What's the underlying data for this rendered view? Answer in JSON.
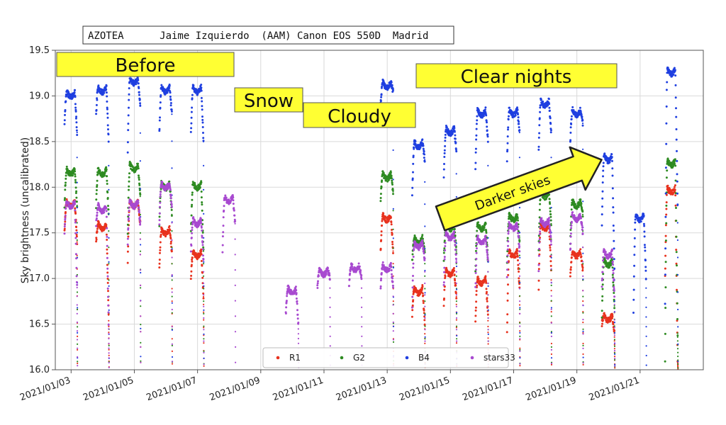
{
  "chart_data": {
    "type": "scatter",
    "title": "AZOTEA      Jaime Izquierdo  (AAM) Canon EOS 550D  Madrid",
    "ylabel": "Sky brightness (uncalibrated)",
    "xlabel": "",
    "x_axis": "date",
    "xlim": [
      "2021-01-02T12:00",
      "2021-01-23T00:00"
    ],
    "ylim": [
      16.0,
      19.5
    ],
    "y_ticks": [
      16.0,
      16.5,
      17.0,
      17.5,
      18.0,
      18.5,
      19.0,
      19.5
    ],
    "x_ticks": [
      "2021/01/03",
      "2021/01/05",
      "2021/01/07",
      "2021/01/09",
      "2021/01/11",
      "2021/01/13",
      "2021/01/15",
      "2021/01/17",
      "2021/01/19",
      "2021/01/21"
    ],
    "grid": true,
    "legend_position": "bottom-right",
    "series": [
      {
        "name": "R1",
        "color": "#e8321e",
        "nights": [
          {
            "date": "2021-01-03",
            "start": 17.5,
            "peak": 17.85,
            "end": 17.4
          },
          {
            "date": "2021-01-04",
            "start": 17.4,
            "peak": 17.6,
            "end": 16.6
          },
          {
            "date": "2021-01-05",
            "start": 17.2,
            "peak": 17.85,
            "end": 17.6
          },
          {
            "date": "2021-01-06",
            "start": 17.1,
            "peak": 17.55,
            "end": 17.3
          },
          {
            "date": "2021-01-07",
            "start": 17.0,
            "peak": 17.3,
            "end": 16.8
          },
          {
            "date": "2021-01-13",
            "start": 17.3,
            "peak": 17.7,
            "end": 17.3
          },
          {
            "date": "2021-01-14",
            "start": 16.6,
            "peak": 16.9,
            "end": 16.5
          },
          {
            "date": "2021-01-15",
            "start": 16.7,
            "peak": 17.1,
            "end": 16.8
          },
          {
            "date": "2021-01-16",
            "start": 16.5,
            "peak": 17.0,
            "end": 16.6
          },
          {
            "date": "2021-01-17",
            "start": 16.4,
            "peak": 17.3,
            "end": 16.9
          },
          {
            "date": "2021-01-18",
            "start": 16.9,
            "peak": 17.6,
            "end": 17.1
          },
          {
            "date": "2021-01-19",
            "start": 17.0,
            "peak": 17.3,
            "end": 17.1
          },
          {
            "date": "2021-01-20",
            "start": 16.5,
            "peak": 16.6,
            "end": 16.4
          },
          {
            "date": "2021-01-22",
            "start": 17.0,
            "peak": 18.0,
            "end": 16.1
          }
        ]
      },
      {
        "name": "G2",
        "color": "#2e8b22",
        "nights": [
          {
            "date": "2021-01-03",
            "start": 17.8,
            "peak": 18.2,
            "end": 17.8
          },
          {
            "date": "2021-01-04",
            "start": 17.8,
            "peak": 18.2,
            "end": 17.7
          },
          {
            "date": "2021-01-05",
            "start": 17.5,
            "peak": 18.25,
            "end": 17.9
          },
          {
            "date": "2021-01-06",
            "start": 17.6,
            "peak": 18.05,
            "end": 17.7
          },
          {
            "date": "2021-01-07",
            "start": 17.5,
            "peak": 18.05,
            "end": 17.3
          },
          {
            "date": "2021-01-13",
            "start": 17.85,
            "peak": 18.15,
            "end": 17.95
          },
          {
            "date": "2021-01-14",
            "start": 17.2,
            "peak": 17.45,
            "end": 17.3
          },
          {
            "date": "2021-01-15",
            "start": 17.2,
            "peak": 17.6,
            "end": 17.3
          },
          {
            "date": "2021-01-16",
            "start": 17.1,
            "peak": 17.6,
            "end": 17.2
          },
          {
            "date": "2021-01-17",
            "start": 17.2,
            "peak": 17.7,
            "end": 17.4
          },
          {
            "date": "2021-01-18",
            "start": 17.3,
            "peak": 17.95,
            "end": 17.6
          },
          {
            "date": "2021-01-19",
            "start": 17.4,
            "peak": 17.85,
            "end": 17.7
          },
          {
            "date": "2021-01-20",
            "start": 16.6,
            "peak": 17.2,
            "end": 16.7
          },
          {
            "date": "2021-01-22",
            "start": 16.1,
            "peak": 18.3,
            "end": 16.4
          }
        ]
      },
      {
        "name": "B4",
        "color": "#1f3fe0",
        "nights": [
          {
            "date": "2021-01-03",
            "start": 18.7,
            "peak": 19.05,
            "end": 18.6
          },
          {
            "date": "2021-01-04",
            "start": 18.8,
            "peak": 19.1,
            "end": 18.5
          },
          {
            "date": "2021-01-05",
            "start": 18.4,
            "peak": 19.2,
            "end": 18.9
          },
          {
            "date": "2021-01-06",
            "start": 18.6,
            "peak": 19.1,
            "end": 18.8
          },
          {
            "date": "2021-01-07",
            "start": 18.6,
            "peak": 19.1,
            "end": 18.5
          },
          {
            "date": "2021-01-13",
            "start": 18.9,
            "peak": 19.15,
            "end": 19.05
          },
          {
            "date": "2021-01-14",
            "start": 17.9,
            "peak": 18.5,
            "end": 18.3
          },
          {
            "date": "2021-01-15",
            "start": 18.1,
            "peak": 18.65,
            "end": 18.4
          },
          {
            "date": "2021-01-16",
            "start": 18.2,
            "peak": 18.85,
            "end": 18.5
          },
          {
            "date": "2021-01-17",
            "start": 18.3,
            "peak": 18.85,
            "end": 18.6
          },
          {
            "date": "2021-01-18",
            "start": 18.4,
            "peak": 18.95,
            "end": 18.6
          },
          {
            "date": "2021-01-19",
            "start": 18.5,
            "peak": 18.85,
            "end": 18.7
          },
          {
            "date": "2021-01-20",
            "start": 17.6,
            "peak": 18.35,
            "end": 17.1
          },
          {
            "date": "2021-01-21",
            "start": 16.6,
            "peak": 17.7,
            "end": 17.0
          },
          {
            "date": "2021-01-22",
            "start": 16.7,
            "peak": 19.3,
            "end": 17.8
          }
        ]
      },
      {
        "name": "stars33",
        "color": "#a84ad0",
        "nights": [
          {
            "date": "2021-01-03",
            "start": 17.5,
            "peak": 17.85,
            "end": 16.9
          },
          {
            "date": "2021-01-04",
            "start": 17.6,
            "peak": 17.8,
            "end": 16.5
          },
          {
            "date": "2021-01-05",
            "start": 17.4,
            "peak": 17.85,
            "end": 17.6
          },
          {
            "date": "2021-01-06",
            "start": 17.6,
            "peak": 18.05,
            "end": 17.8
          },
          {
            "date": "2021-01-07",
            "start": 17.3,
            "peak": 17.65,
            "end": 17.2
          },
          {
            "date": "2021-01-08",
            "start": 17.3,
            "peak": 17.9,
            "end": 17.6
          },
          {
            "date": "2021-01-10",
            "start": 16.6,
            "peak": 16.9,
            "end": 16.5
          },
          {
            "date": "2021-01-11",
            "start": 16.9,
            "peak": 17.1,
            "end": 17.0
          },
          {
            "date": "2021-01-12",
            "start": 16.9,
            "peak": 17.15,
            "end": 17.0
          },
          {
            "date": "2021-01-13",
            "start": 16.9,
            "peak": 17.15,
            "end": 16.9
          },
          {
            "date": "2021-01-14",
            "start": 16.7,
            "peak": 17.4,
            "end": 17.2
          },
          {
            "date": "2021-01-15",
            "start": 16.9,
            "peak": 17.5,
            "end": 17.2
          },
          {
            "date": "2021-01-16",
            "start": 16.9,
            "peak": 17.45,
            "end": 17.2
          },
          {
            "date": "2021-01-17",
            "start": 17.0,
            "peak": 17.6,
            "end": 17.3
          },
          {
            "date": "2021-01-18",
            "start": 17.1,
            "peak": 17.65,
            "end": 17.4
          },
          {
            "date": "2021-01-19",
            "start": 17.3,
            "peak": 17.7,
            "end": 17.5
          },
          {
            "date": "2021-01-20",
            "start": 16.9,
            "peak": 17.3,
            "end": 16.8
          }
        ]
      }
    ],
    "annotations": [
      {
        "text": "Before",
        "anchor_date": "2021-01-03",
        "y": 19.3
      },
      {
        "text": "Snow",
        "anchor_date": "2021-01-08",
        "y": 18.95
      },
      {
        "text": "Cloudy",
        "anchor_date": "2021-01-11",
        "y": 18.8
      },
      {
        "text": "Clear nights",
        "anchor_date": "2021-01-16",
        "y": 19.2
      },
      {
        "text": "Darker skies",
        "anchor_date": "2021-01-17",
        "y": 17.9
      }
    ]
  }
}
